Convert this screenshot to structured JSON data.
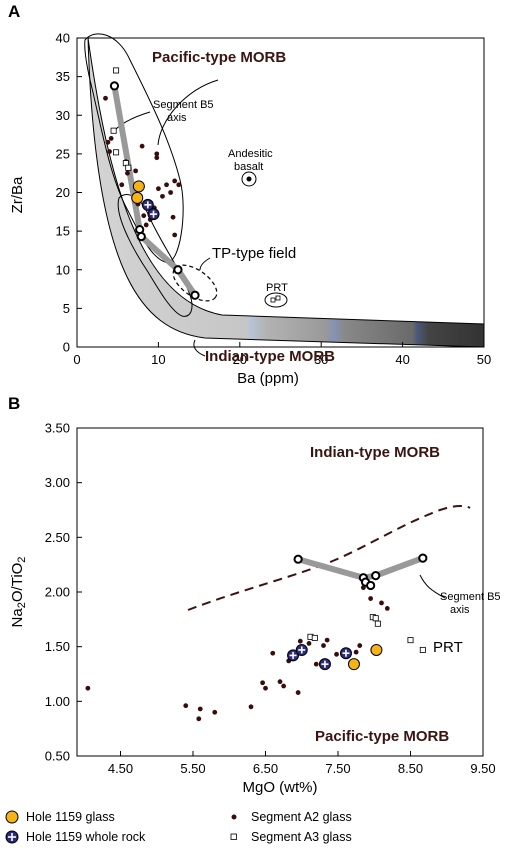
{
  "colors": {
    "hole1159_glass": "#f5b318",
    "hole1159_whole_rock": "#2d2c7e",
    "segment_a2": "#3a0d0d",
    "trend": "#999999",
    "region_label": "#3a1410"
  },
  "chart_data": [
    {
      "panel": "A",
      "type": "scatter",
      "xlabel": "Ba (ppm)",
      "ylabel": "Zr/Ba",
      "xlim": [
        0,
        50
      ],
      "ylim": [
        0,
        40
      ],
      "xticks": [
        "0",
        "10",
        "20",
        "30",
        "40",
        "50"
      ],
      "yticks": [
        "0",
        "5",
        "10",
        "15",
        "20",
        "25",
        "30",
        "35",
        "40"
      ],
      "grid": false,
      "annotations": {
        "pacific": "Pacific-type MORB",
        "indian": "Indian-type MORB",
        "tp": "TP-type field",
        "segment_b5_l1": "Segment B5",
        "segment_b5_l2": "axis",
        "andesitic_l1": "Andesitic",
        "andesitic_l2": "basalt",
        "prt": "PRT"
      },
      "series": [
        {
          "name": "Segment A2 glass",
          "points": [
            [
              3.5,
              32.2
            ],
            [
              4.2,
              27.0
            ],
            [
              4.0,
              25.3
            ],
            [
              3.8,
              26.5
            ],
            [
              6.0,
              24.0
            ],
            [
              6.2,
              22.5
            ],
            [
              5.5,
              21.0
            ],
            [
              7.5,
              18.5
            ],
            [
              8.2,
              17.0
            ],
            [
              9.0,
              16.5
            ],
            [
              8.5,
              15.8
            ],
            [
              9.5,
              18.0
            ],
            [
              8.0,
              26.0
            ],
            [
              10.0,
              20.5
            ],
            [
              11.0,
              21.0
            ],
            [
              12.0,
              21.5
            ],
            [
              11.5,
              20.0
            ],
            [
              10.5,
              19.5
            ],
            [
              12.5,
              21.0
            ],
            [
              9.8,
              24.5
            ],
            [
              7.2,
              22.8
            ],
            [
              11.8,
              16.8
            ],
            [
              12.0,
              14.5
            ],
            [
              9.8,
              25.0
            ]
          ]
        },
        {
          "name": "Segment A3 glass",
          "points": [
            [
              4.8,
              35.8
            ],
            [
              4.5,
              28.0
            ],
            [
              4.8,
              25.2
            ],
            [
              6.0,
              23.8
            ],
            [
              6.3,
              23.2
            ]
          ]
        },
        {
          "name": "Hole 1159 glass",
          "points": [
            [
              7.6,
              20.8
            ],
            [
              7.4,
              19.3
            ]
          ]
        },
        {
          "name": "Hole 1159 whole rock",
          "points": [
            [
              8.7,
              18.4
            ],
            [
              9.4,
              17.2
            ]
          ]
        },
        {
          "name": "Segment B5 axis",
          "points": [
            [
              4.6,
              33.8
            ],
            [
              7.7,
              15.2
            ],
            [
              7.9,
              14.3
            ],
            [
              12.4,
              10.0
            ],
            [
              14.5,
              6.7
            ]
          ]
        }
      ]
    },
    {
      "panel": "B",
      "type": "scatter",
      "xlabel": "MgO (wt%)",
      "ylabel": "Na2O/TiO2",
      "xlim": [
        3.9,
        9.5
      ],
      "ylim": [
        0.5,
        3.5
      ],
      "xticks": [
        "4.50",
        "5.50",
        "6.50",
        "7.50",
        "8.50",
        "9.50"
      ],
      "yticks": [
        "0.50",
        "1.00",
        "1.50",
        "2.00",
        "2.50",
        "3.00",
        "3.50"
      ],
      "grid": false,
      "annotations": {
        "indian": "Indian-type MORB",
        "pacific": "Pacific-type MORB",
        "segment_b5_l1": "Segment B5",
        "segment_b5_l2": "axis",
        "prt": "PRT"
      },
      "series": [
        {
          "name": "Segment A2 glass",
          "points": [
            [
              4.05,
              1.12
            ],
            [
              5.4,
              0.96
            ],
            [
              5.58,
              0.84
            ],
            [
              5.6,
              0.93
            ],
            [
              5.8,
              0.9
            ],
            [
              6.3,
              0.95
            ],
            [
              6.46,
              1.17
            ],
            [
              6.5,
              1.12
            ],
            [
              6.6,
              1.44
            ],
            [
              6.7,
              1.18
            ],
            [
              6.75,
              1.14
            ],
            [
              6.82,
              1.37
            ],
            [
              6.95,
              1.08
            ],
            [
              6.98,
              1.55
            ],
            [
              7.1,
              1.53
            ],
            [
              7.2,
              1.34
            ],
            [
              7.3,
              1.51
            ],
            [
              7.35,
              1.56
            ],
            [
              7.48,
              1.43
            ],
            [
              7.75,
              1.45
            ],
            [
              7.8,
              1.51
            ],
            [
              7.85,
              2.04
            ],
            [
              7.92,
              2.07
            ],
            [
              7.95,
              1.94
            ],
            [
              8.1,
              1.9
            ],
            [
              8.18,
              1.85
            ]
          ]
        },
        {
          "name": "Segment A3 glass",
          "points": [
            [
              7.12,
              1.59
            ],
            [
              7.18,
              1.58
            ],
            [
              7.98,
              1.77
            ],
            [
              8.02,
              1.76
            ],
            [
              8.05,
              1.71
            ],
            [
              8.5,
              1.56
            ],
            [
              8.67,
              1.47
            ]
          ]
        },
        {
          "name": "Hole 1159 glass",
          "points": [
            [
              7.72,
              1.34
            ],
            [
              8.03,
              1.47
            ]
          ]
        },
        {
          "name": "Hole 1159 whole rock",
          "points": [
            [
              6.88,
              1.42
            ],
            [
              7.0,
              1.47
            ],
            [
              7.32,
              1.34
            ],
            [
              7.61,
              1.44
            ]
          ]
        },
        {
          "name": "Segment B5 axis",
          "points": [
            [
              6.95,
              2.3
            ],
            [
              7.85,
              2.13
            ],
            [
              7.88,
              2.09
            ],
            [
              8.02,
              2.15
            ],
            [
              8.67,
              2.31
            ],
            [
              7.95,
              2.06
            ]
          ]
        }
      ]
    }
  ],
  "legend": [
    {
      "label": "Hole 1159 glass",
      "marker": "filled-circle"
    },
    {
      "label": "Hole 1159 whole rock",
      "marker": "cross-circle"
    },
    {
      "label": "Segment A2 glass",
      "marker": "dot"
    },
    {
      "label": "Segment A3 glass",
      "marker": "open-square"
    }
  ],
  "panel_a_letter": "A",
  "panel_b_letter": "B"
}
